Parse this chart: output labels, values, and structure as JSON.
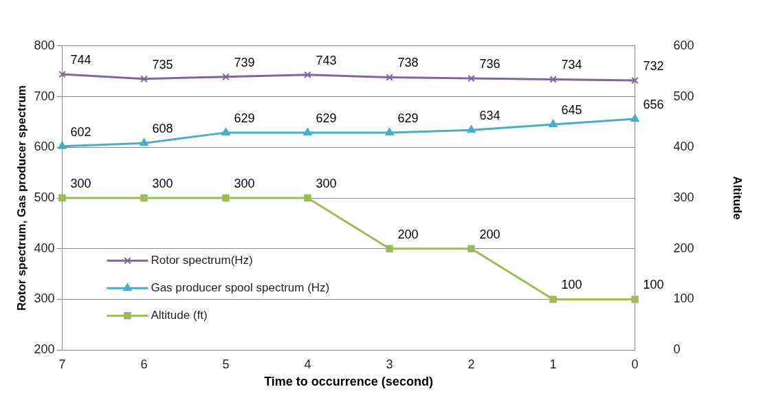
{
  "chart_data": {
    "type": "line",
    "xlabel": "Time to occurrence (second)",
    "ylabel": "Rotor spectrum, Gas producer spectrum",
    "y2label": "Altitude",
    "categories": [
      "7",
      "6",
      "5",
      "4",
      "3",
      "2",
      "1",
      "0"
    ],
    "ylim": [
      200,
      800
    ],
    "yticks": [
      200,
      300,
      400,
      500,
      600,
      700,
      800
    ],
    "y2lim": [
      0,
      600
    ],
    "y2ticks": [
      0,
      100,
      200,
      300,
      400,
      500,
      600
    ],
    "grid": "y",
    "legend": "bottom left",
    "data_labels": true,
    "series": [
      {
        "name": "Rotor spectrum(Hz)",
        "color": "#8064a2",
        "marker": "cross",
        "values": [
          744,
          735,
          739,
          743,
          738,
          736,
          734,
          732
        ]
      },
      {
        "name": "Gas producer spool spectrum (Hz)",
        "color": "#4bacc6",
        "marker": "triangle",
        "values": [
          602,
          608,
          629,
          629,
          629,
          634,
          645,
          656
        ]
      },
      {
        "name": "Altitude (ft)",
        "color": "#9bbb59",
        "marker": "square",
        "axis": "y2",
        "values": [
          300,
          300,
          300,
          300,
          200,
          200,
          100,
          100
        ]
      }
    ]
  }
}
